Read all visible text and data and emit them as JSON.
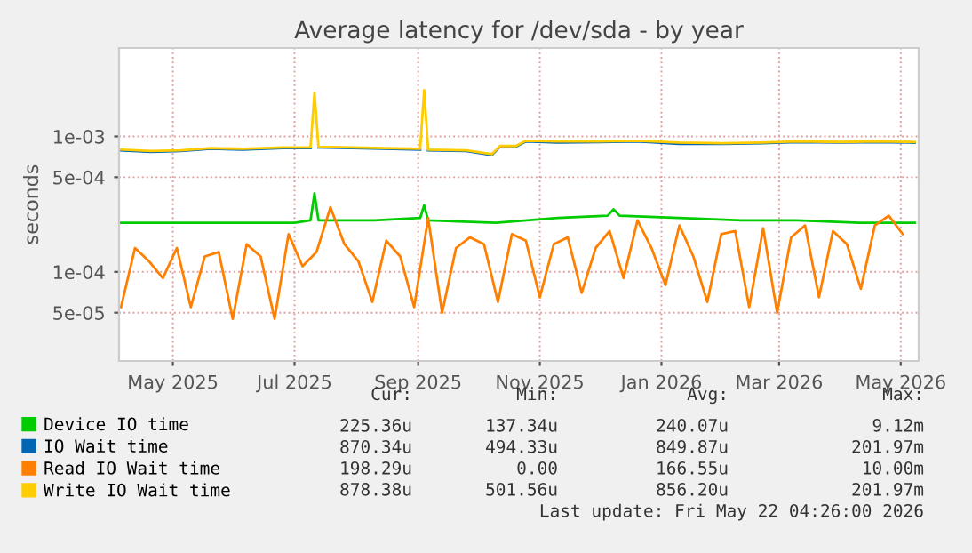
{
  "chart_data": {
    "type": "line",
    "title": "Average latency for /dev/sda - by year",
    "ylabel": "seconds",
    "log": "y",
    "grid": true,
    "legend": "bottom",
    "line_style": "solid",
    "marker": "none",
    "ylim": [
      2.2e-05,
      0.0045
    ],
    "yticks": [
      {
        "value": 5e-05,
        "label": "5e-05"
      },
      {
        "value": 0.0001,
        "label": "1e-04"
      },
      {
        "value": 0.0005,
        "label": "5e-04"
      },
      {
        "value": 0.001,
        "label": "1e-03"
      }
    ],
    "xlim": [
      "2025-04-04",
      "2026-05-10"
    ],
    "xticks": [
      {
        "value": "2025-05-01",
        "label": "May 2025"
      },
      {
        "value": "2025-07-01",
        "label": "Jul 2025"
      },
      {
        "value": "2025-09-01",
        "label": "Sep 2025"
      },
      {
        "value": "2025-11-01",
        "label": "Nov 2025"
      },
      {
        "value": "2026-01-01",
        "label": "Jan 2026"
      },
      {
        "value": "2026-03-01",
        "label": "Mar 2026"
      },
      {
        "value": "2026-05-01",
        "label": "May 2026"
      }
    ],
    "series": [
      {
        "name": "Device IO time",
        "color": "#00cc00",
        "x": [
          "2025-04-05",
          "2025-05-01",
          "2025-06-01",
          "2025-07-01",
          "2025-07-09",
          "2025-07-11",
          "2025-07-13",
          "2025-08-10",
          "2025-09-02",
          "2025-09-04",
          "2025-09-06",
          "2025-10-10",
          "2025-11-10",
          "2025-12-05",
          "2025-12-08",
          "2025-12-11",
          "2026-01-10",
          "2026-02-10",
          "2026-03-10",
          "2026-04-10",
          "2026-05-08"
        ],
        "values": [
          0.00023,
          0.00023,
          0.00023,
          0.00023,
          0.00024,
          0.00038,
          0.00024,
          0.00024,
          0.00025,
          0.00031,
          0.00024,
          0.00023,
          0.00025,
          0.00026,
          0.00029,
          0.00026,
          0.00025,
          0.00024,
          0.00024,
          0.00023,
          0.00023
        ]
      },
      {
        "name": "IO Wait time",
        "color": "#0066b3",
        "x": [
          "2025-04-05",
          "2025-04-20",
          "2025-05-05",
          "2025-05-20",
          "2025-06-05",
          "2025-06-25",
          "2025-07-09",
          "2025-07-11",
          "2025-07-13",
          "2025-07-30",
          "2025-08-15",
          "2025-09-02",
          "2025-09-04",
          "2025-09-06",
          "2025-09-25",
          "2025-10-08",
          "2025-10-12",
          "2025-10-20",
          "2025-10-25",
          "2025-11-10",
          "2025-12-01",
          "2025-12-20",
          "2026-01-10",
          "2026-02-01",
          "2026-02-20",
          "2026-03-10",
          "2026-04-01",
          "2026-04-20",
          "2026-05-08"
        ],
        "values": [
          0.00079,
          0.00077,
          0.00078,
          0.00081,
          0.0008,
          0.00082,
          0.00082,
          null,
          0.00083,
          0.00082,
          0.00081,
          0.0008,
          null,
          0.00079,
          0.00078,
          0.00073,
          0.00084,
          0.00084,
          0.00092,
          0.0009,
          0.00091,
          0.00092,
          0.00088,
          0.00088,
          0.00089,
          0.00091,
          0.0009,
          0.00091,
          0.0009
        ]
      },
      {
        "name": "Read IO Wait time",
        "color": "#ff8000",
        "x": [
          "2025-04-05",
          "2025-04-12",
          "2025-04-19",
          "2025-04-26",
          "2025-05-03",
          "2025-05-10",
          "2025-05-17",
          "2025-05-24",
          "2025-05-31",
          "2025-06-07",
          "2025-06-14",
          "2025-06-21",
          "2025-06-28",
          "2025-07-05",
          "2025-07-12",
          "2025-07-19",
          "2025-07-26",
          "2025-08-02",
          "2025-08-09",
          "2025-08-16",
          "2025-08-23",
          "2025-08-30",
          "2025-09-06",
          "2025-09-13",
          "2025-09-20",
          "2025-09-27",
          "2025-10-04",
          "2025-10-11",
          "2025-10-18",
          "2025-10-25",
          "2025-11-01",
          "2025-11-08",
          "2025-11-15",
          "2025-11-22",
          "2025-11-29",
          "2025-12-06",
          "2025-12-13",
          "2025-12-20",
          "2025-12-27",
          "2026-01-03",
          "2026-01-10",
          "2026-01-17",
          "2026-01-24",
          "2026-01-31",
          "2026-02-07",
          "2026-02-14",
          "2026-02-21",
          "2026-02-28",
          "2026-03-07",
          "2026-03-14",
          "2026-03-21",
          "2026-03-28",
          "2026-04-04",
          "2026-04-11",
          "2026-04-18",
          "2026-04-25",
          "2026-05-02"
        ],
        "values": [
          5.5e-05,
          0.00015,
          0.00012,
          9e-05,
          0.00015,
          5.5e-05,
          0.00013,
          0.00014,
          4.5e-05,
          0.00016,
          0.00013,
          4.5e-05,
          0.00019,
          0.00011,
          0.00014,
          0.0003,
          0.00016,
          0.00012,
          6e-05,
          0.00017,
          0.00013,
          5.5e-05,
          0.00025,
          5e-05,
          0.00015,
          0.00018,
          0.00016,
          6e-05,
          0.00019,
          0.00017,
          6.5e-05,
          0.00016,
          0.00018,
          7e-05,
          0.00015,
          0.0002,
          9e-05,
          0.00024,
          0.00015,
          8e-05,
          0.00022,
          0.00013,
          6e-05,
          0.00019,
          0.0002,
          5.5e-05,
          0.00021,
          5e-05,
          0.00018,
          0.00022,
          6.5e-05,
          0.0002,
          0.00016,
          7.5e-05,
          0.00022,
          0.00026,
          0.00019
        ]
      },
      {
        "name": "Write IO Wait time",
        "color": "#ffcc00",
        "x": [
          "2025-04-05",
          "2025-04-20",
          "2025-05-05",
          "2025-05-20",
          "2025-06-05",
          "2025-06-25",
          "2025-07-09",
          "2025-07-11",
          "2025-07-13",
          "2025-07-30",
          "2025-08-15",
          "2025-09-02",
          "2025-09-04",
          "2025-09-06",
          "2025-09-25",
          "2025-10-08",
          "2025-10-12",
          "2025-10-20",
          "2025-10-25",
          "2025-11-10",
          "2025-12-01",
          "2025-12-20",
          "2026-01-10",
          "2026-02-01",
          "2026-02-20",
          "2026-03-10",
          "2026-04-01",
          "2026-04-20",
          "2026-05-08"
        ],
        "values": [
          0.0008,
          0.00078,
          0.00079,
          0.00082,
          0.00081,
          0.00083,
          0.00083,
          0.0021,
          0.00084,
          0.00083,
          0.00082,
          0.00081,
          0.0022,
          0.0008,
          0.00079,
          0.00074,
          0.00085,
          0.00085,
          0.00093,
          0.00092,
          0.00092,
          0.00093,
          0.0009,
          0.00089,
          0.0009,
          0.00092,
          0.00091,
          0.00092,
          0.00091
        ]
      }
    ],
    "annotations": [
      "Cur:",
      "Min:",
      "Avg:",
      "Max:",
      "225.36u",
      "137.34u",
      "240.07u",
      "9.12m",
      "870.34u",
      "494.33u",
      "849.87u",
      "201.97m",
      "198.29u",
      "0.00",
      "166.55u",
      "10.00m",
      "878.38u",
      "501.56u",
      "856.20u",
      "201.97m",
      "Last update: Fri May 22 04:26:00 2026"
    ]
  }
}
